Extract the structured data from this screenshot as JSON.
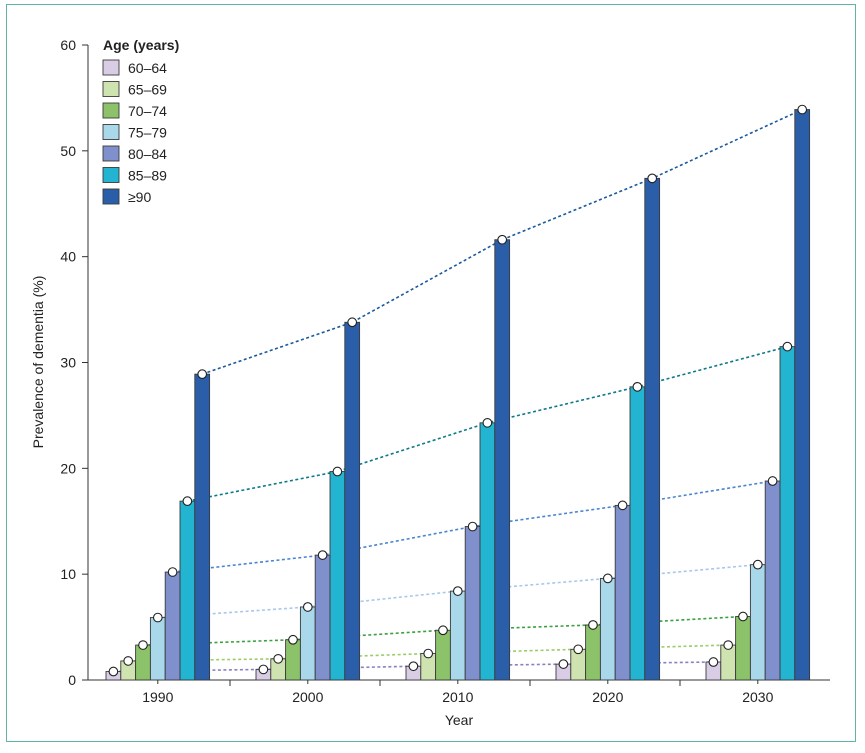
{
  "chart_data": {
    "type": "bar",
    "title": "",
    "xlabel": "Year",
    "ylabel": "Prevalence of dementia (%)",
    "ylim": [
      0,
      60
    ],
    "yticks": [
      0,
      10,
      20,
      30,
      40,
      50,
      60
    ],
    "categories": [
      "1990",
      "2000",
      "2010",
      "2020",
      "2030"
    ],
    "legend_title": "Age (years)",
    "legend_position": "top-left",
    "series": [
      {
        "name": "60–64",
        "color": "#d9cde6",
        "line_color": "#8a80c0",
        "values": [
          0.8,
          1.0,
          1.3,
          1.5,
          1.7
        ]
      },
      {
        "name": "65–69",
        "color": "#cfe3b0",
        "line_color": "#9acd6a",
        "values": [
          1.8,
          2.0,
          2.5,
          2.9,
          3.3
        ]
      },
      {
        "name": "70–74",
        "color": "#8cc26a",
        "line_color": "#3aa040",
        "values": [
          3.3,
          3.8,
          4.7,
          5.2,
          6.0
        ]
      },
      {
        "name": "75–79",
        "color": "#a8d8ea",
        "line_color": "#a8c8ec",
        "values": [
          5.9,
          6.9,
          8.4,
          9.6,
          10.9
        ]
      },
      {
        "name": "80–84",
        "color": "#8090cc",
        "line_color": "#4a86d0",
        "values": [
          10.2,
          11.8,
          14.5,
          16.5,
          18.8
        ]
      },
      {
        "name": "85–89",
        "color": "#22b4d0",
        "line_color": "#0d7a8a",
        "values": [
          16.9,
          19.7,
          24.3,
          27.7,
          31.5
        ]
      },
      {
        "name": "≥90",
        "color": "#2a5ea8",
        "line_color": "#1b5a9e",
        "values": [
          28.9,
          33.8,
          41.6,
          47.4,
          53.9
        ]
      }
    ]
  }
}
